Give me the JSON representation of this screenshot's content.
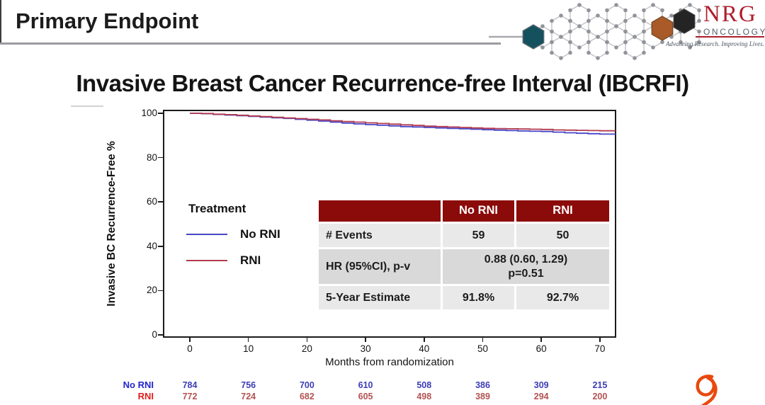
{
  "slide": {
    "title": "Primary Endpoint",
    "heading": "Invasive Breast Cancer Recurrence-free Interval (IBCRFI)"
  },
  "logo": {
    "name": "NRG",
    "sub": "ONCOLOGY",
    "tagline": "Advancing Research. Improving Lives.",
    "accent_color": "#ae1e2c"
  },
  "chart_data": {
    "type": "line",
    "subtype": "kaplan-meier-step",
    "title": "Invasive Breast Cancer Recurrence-free Interval (IBCRFI)",
    "xlabel": "Months from randomization",
    "ylabel": "Invasive BC Recurrence-Free %",
    "xticks": [
      0,
      10,
      20,
      30,
      40,
      50,
      60,
      70
    ],
    "yticks": [
      0,
      20,
      40,
      60,
      80,
      100
    ],
    "xlim": [
      -4.6,
      72.8
    ],
    "ylim": [
      0,
      103
    ],
    "grid": false,
    "legend_title": "Treatment",
    "legend_position": "inside-left",
    "series": [
      {
        "name": "No RNI",
        "color": "#4646c8",
        "points": [
          [
            0,
            100
          ],
          [
            2,
            99.8
          ],
          [
            4,
            99.5
          ],
          [
            6,
            99.2
          ],
          [
            8,
            98.9
          ],
          [
            10,
            98.6
          ],
          [
            12,
            98.3
          ],
          [
            14,
            98.0
          ],
          [
            16,
            97.7
          ],
          [
            18,
            97.3
          ],
          [
            20,
            96.9
          ],
          [
            22,
            96.5
          ],
          [
            24,
            96.0
          ],
          [
            26,
            95.6
          ],
          [
            28,
            95.2
          ],
          [
            30,
            94.9
          ],
          [
            32,
            94.6
          ],
          [
            34,
            94.3
          ],
          [
            36,
            94.0
          ],
          [
            38,
            93.8
          ],
          [
            40,
            93.6
          ],
          [
            42,
            93.4
          ],
          [
            44,
            93.2
          ],
          [
            46,
            93.0
          ],
          [
            48,
            92.8
          ],
          [
            50,
            92.6
          ],
          [
            52,
            92.4
          ],
          [
            54,
            92.2
          ],
          [
            56,
            92.0
          ],
          [
            58,
            91.9
          ],
          [
            60,
            91.8
          ],
          [
            62,
            91.5
          ],
          [
            64,
            91.2
          ],
          [
            66,
            91.0
          ],
          [
            68,
            90.8
          ],
          [
            70,
            90.6
          ],
          [
            72.6,
            90.5
          ]
        ]
      },
      {
        "name": "RNI",
        "color": "#b23a4e",
        "points": [
          [
            0,
            100
          ],
          [
            2,
            99.9
          ],
          [
            4,
            99.6
          ],
          [
            6,
            99.4
          ],
          [
            8,
            99.1
          ],
          [
            10,
            98.8
          ],
          [
            12,
            98.5
          ],
          [
            14,
            98.2
          ],
          [
            16,
            97.9
          ],
          [
            18,
            97.6
          ],
          [
            20,
            97.3
          ],
          [
            22,
            97.0
          ],
          [
            24,
            96.6
          ],
          [
            26,
            96.3
          ],
          [
            28,
            96.0
          ],
          [
            30,
            95.7
          ],
          [
            32,
            95.4
          ],
          [
            34,
            95.1
          ],
          [
            36,
            94.8
          ],
          [
            38,
            94.5
          ],
          [
            40,
            94.2
          ],
          [
            42,
            94.0
          ],
          [
            44,
            93.8
          ],
          [
            46,
            93.6
          ],
          [
            48,
            93.4
          ],
          [
            50,
            93.2
          ],
          [
            52,
            93.1
          ],
          [
            54,
            93.0
          ],
          [
            56,
            92.9
          ],
          [
            58,
            92.8
          ],
          [
            60,
            92.7
          ],
          [
            62,
            92.5
          ],
          [
            64,
            92.4
          ],
          [
            66,
            92.3
          ],
          [
            68,
            92.2
          ],
          [
            70,
            92.1
          ],
          [
            72.6,
            92.0
          ]
        ]
      }
    ],
    "at_risk": {
      "months": [
        0,
        10,
        20,
        30,
        40,
        50,
        60,
        70
      ],
      "rows": [
        {
          "label": "No RNI",
          "label_color": "#2323cd",
          "number_color": "#3d3db6",
          "values": [
            "784",
            "756",
            "700",
            "610",
            "508",
            "386",
            "309",
            "215"
          ]
        },
        {
          "label": "RNI",
          "label_color": "#e01d1d",
          "number_color": "#b35252",
          "values": [
            "772",
            "724",
            "682",
            "605",
            "498",
            "389",
            "294",
            "200"
          ]
        }
      ]
    }
  },
  "stats_table": {
    "header_bg": "#8b0a0a",
    "columns": [
      "",
      "No RNI",
      "RNI"
    ],
    "rows": [
      {
        "label": "# Events",
        "no_rni": "59",
        "rni": "50"
      },
      {
        "label": "HR (95%CI), p-v",
        "merged_line1": "0.88 (0.60, 1.29)",
        "merged_line2": "p=0.51"
      },
      {
        "label": "5-Year Estimate",
        "no_rni": "91.8%",
        "rni": "92.7%"
      }
    ]
  },
  "decor": {
    "corner_glyph": "script-flourish",
    "corner_glyph_color": "#e8490f"
  }
}
